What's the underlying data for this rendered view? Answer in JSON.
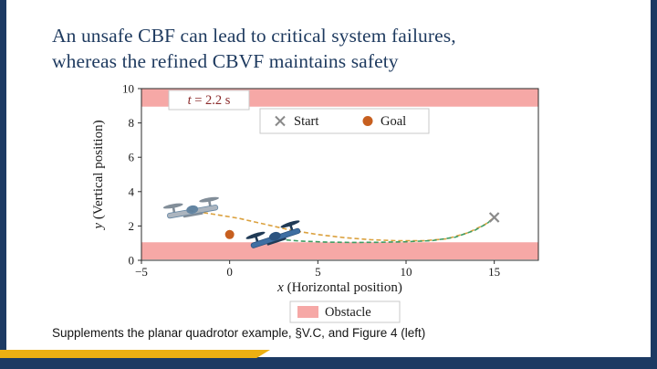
{
  "frame": {
    "navy": "#1c3a63",
    "gold": "#ecb012"
  },
  "title": {
    "line1": "An unsafe CBF can lead to critical system failures,",
    "line2": "whereas the refined CBVF maintains safety",
    "color": "#1e3a5f"
  },
  "caption": "Supplements the planar quadrotor example, §V.C, and Figure 4 (left)",
  "chart_data": {
    "type": "line",
    "title": "",
    "xlabel": "x (Horizontal position)",
    "ylabel": "y (Vertical position)",
    "xlim": [
      -5,
      17.5
    ],
    "ylim": [
      0,
      10
    ],
    "xticks": [
      -5,
      0,
      5,
      10,
      15
    ],
    "yticks": [
      0,
      2,
      4,
      6,
      8,
      10
    ],
    "grid": false,
    "time_label": {
      "text": "t = 2.2 s",
      "color": "#8b2a2a"
    },
    "obstacle_color": "#f6a8a6",
    "obstacles": [
      {
        "y0": 8.95,
        "y1": 10.0
      },
      {
        "y0": 0.05,
        "y1": 1.05
      }
    ],
    "start": {
      "label": "Start",
      "marker": "x",
      "color": "#8a8a8a",
      "x": 15,
      "y": 2.5
    },
    "goal": {
      "label": "Goal",
      "marker": "dot",
      "color": "#c75f1f",
      "x": 0,
      "y": 1.5
    },
    "series": [
      {
        "name": "unsafe-cbf-trajectory",
        "color": "#dba13e",
        "dash": "5 3",
        "points": [
          [
            -2.3,
            2.9
          ],
          [
            -1,
            2.7
          ],
          [
            0.5,
            2.45
          ],
          [
            2,
            2.1
          ],
          [
            3.5,
            1.75
          ],
          [
            5,
            1.5
          ],
          [
            6.5,
            1.32
          ],
          [
            8,
            1.2
          ],
          [
            9.5,
            1.14
          ],
          [
            11,
            1.14
          ],
          [
            12.3,
            1.25
          ],
          [
            13.5,
            1.6
          ],
          [
            14.5,
            2.1
          ],
          [
            15,
            2.5
          ]
        ]
      },
      {
        "name": "refined-cbvf-trajectory",
        "color": "#3f9d63",
        "dash": "5 3",
        "points": [
          [
            2.8,
            1.22
          ],
          [
            4,
            1.12
          ],
          [
            5.5,
            1.06
          ],
          [
            7,
            1.04
          ],
          [
            8.5,
            1.05
          ],
          [
            10,
            1.08
          ],
          [
            11.5,
            1.15
          ],
          [
            12.8,
            1.35
          ],
          [
            13.9,
            1.75
          ],
          [
            14.6,
            2.15
          ],
          [
            15,
            2.5
          ]
        ]
      }
    ],
    "quadrotors": [
      {
        "name": "unsafe-cbf-quadrotor",
        "x": -2.1,
        "y": 2.85,
        "tilt": -10,
        "body": "#a8b2bc",
        "rotor": "#7c8894",
        "accent": "#5b7f9e",
        "opacity": 0.95
      },
      {
        "name": "refined-cbvf-quadrotor",
        "x": 2.6,
        "y": 1.3,
        "tilt": -18,
        "body": "#3f6fa3",
        "rotor": "#203a55",
        "accent": "#2c5480",
        "opacity": 1
      }
    ],
    "legend_top_position": "upper center",
    "legend_bottom": {
      "label": "Obstacle",
      "color": "#f6a8a6"
    }
  }
}
